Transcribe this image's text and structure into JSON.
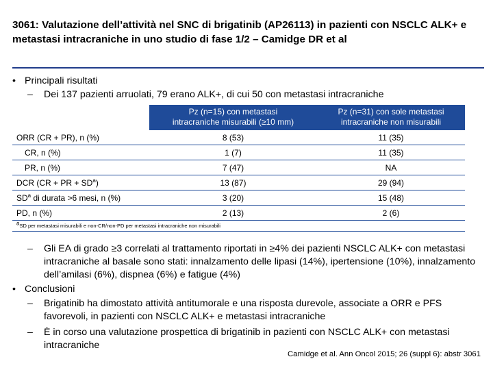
{
  "title": "3061: Valutazione dell’attività nel SNC di brigatinib (AP26113) in pazienti con NSCLC ALK+ e metastasi intracraniche in uno studio di fase 1/2 – Camidge DR et al",
  "bullet_char": "•",
  "dash_char": "–",
  "results": {
    "heading": "Principali risultati",
    "intro": "Dei 137 pazienti arruolati, 79 erano ALK+, di cui 50 con metastasi intracraniche"
  },
  "table": {
    "col1_header_line1": "Pz (n=15) con metastasi",
    "col1_header_line2": "intracraniche misurabili (≥10 mm)",
    "col2_header_line1": "Pz (n=31) con sole metastasi",
    "col2_header_line2": "intracraniche non misurabili",
    "rows": [
      {
        "label": "ORR (CR + PR), n (%)",
        "col1": "8 (53)",
        "col2": "11 (35)"
      },
      {
        "label": "CR, n (%)",
        "col1": "1 (7)",
        "col2": "11 (35)"
      },
      {
        "label": "PR, n (%)",
        "col1": "7 (47)",
        "col2": "NA"
      },
      {
        "label_pre": "DCR (CR + PR + SD",
        "label_sup": "a",
        "label_post": ")",
        "col1": "13 (87)",
        "col2": "29 (94)"
      },
      {
        "label_pre": "SD",
        "label_sup": "a",
        "label_post": " di durata >6 mesi, n (%)",
        "col1": "3 (20)",
        "col2": "15 (48)"
      },
      {
        "label": "PD, n (%)",
        "col1": "2 (13)",
        "col2": "2 (6)"
      }
    ],
    "footnote_sup": "a",
    "footnote": "SD per metastasi misurabili e non-CR/non-PD per metastasi intracraniche non misurabili"
  },
  "adverse_events": "Gli EA di grado ≥3 correlati al trattamento riportati in ≥4% dei pazienti NSCLC ALK+ con metastasi intracraniche al basale sono stati: innalzamento delle lipasi (14%), ipertensione (10%), innalzamento dell’amilasi (6%), dispnea (6%) e fatigue (4%)",
  "conclusions": {
    "heading": "Conclusioni",
    "items": [
      "Brigatinib ha dimostato attività antitumorale e una risposta durevole, associate a ORR e PFS favorevoli, in pazienti con NSCLC ALK+ e metastasi intracraniche",
      "È in corso una valutazione prospettica di brigatinib in pazienti con NSCLC ALK+ con metastasi intracraniche"
    ]
  },
  "citation": "Camidge et al. Ann Oncol 2015; 26 (suppl 6): abstr 3061",
  "colors": {
    "accent": "#1f4b99",
    "title_rule": "#1f3b8a",
    "header_text": "#ffffff"
  }
}
